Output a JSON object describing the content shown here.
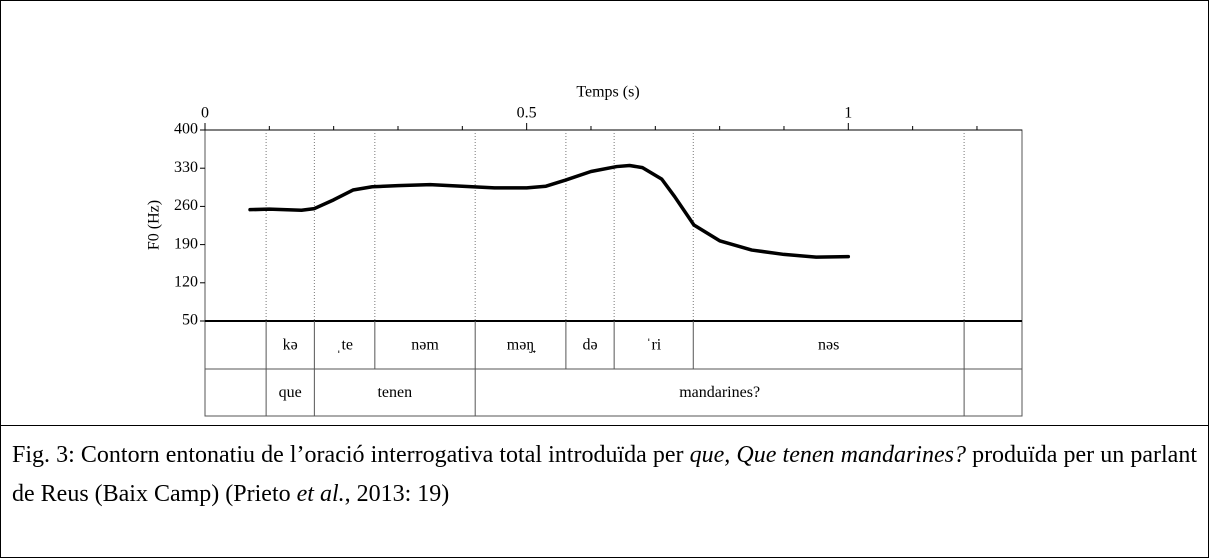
{
  "chart_data": {
    "type": "line",
    "x_label": "Temps (s)",
    "y_label": "F0 (Hz)",
    "xlim": [
      0,
      1.27
    ],
    "ylim": [
      50,
      400
    ],
    "xticks": [
      0,
      0.5,
      1
    ],
    "x_minor_ticks": [
      0.1,
      0.2,
      0.3,
      0.4,
      0.6,
      0.7,
      0.8,
      0.9,
      1.1,
      1.2
    ],
    "yticks": [
      50,
      120,
      190,
      260,
      330,
      400
    ],
    "series": [
      {
        "color": "#000000",
        "x": [
          0.07,
          0.1,
          0.15,
          0.17,
          0.2,
          0.23,
          0.26,
          0.3,
          0.35,
          0.4,
          0.45,
          0.5,
          0.53,
          0.56,
          0.6,
          0.64,
          0.66,
          0.68,
          0.71,
          0.73,
          0.76,
          0.8,
          0.85,
          0.9,
          0.95,
          1.0
        ],
        "values": [
          254,
          255,
          253,
          256,
          272,
          290,
          296,
          298,
          300,
          297,
          294,
          294,
          297,
          308,
          324,
          333,
          335,
          331,
          310,
          278,
          226,
          197,
          180,
          172,
          167,
          168
        ]
      }
    ],
    "tiers": [
      {
        "boundaries": [
          0.095,
          0.17,
          0.264,
          0.42,
          0.561,
          0.636,
          0.759,
          1.18
        ],
        "labels": [
          null,
          "kə",
          "ˌte",
          "nəm",
          "məŋ̟",
          "də",
          "ˈri",
          "nəs",
          null
        ]
      },
      {
        "boundaries": [
          0.095,
          0.17,
          0.42,
          1.18
        ],
        "labels": [
          null,
          "que",
          "tenen",
          "mandarines?",
          null
        ]
      }
    ]
  },
  "caption": [
    {
      "text": "Fig. 3: Contorn entonatiu de l’oració interrogativa total introduïda per ",
      "style": "normal"
    },
    {
      "text": "que, Que tenen mandarines?",
      "style": "italic"
    },
    {
      "text": " produïda per un parlant de Reus (Baix Camp) (Prieto ",
      "style": "normal"
    },
    {
      "text": "et al.",
      "style": "italic"
    },
    {
      "text": ", 2013: 19)",
      "style": "normal"
    }
  ]
}
